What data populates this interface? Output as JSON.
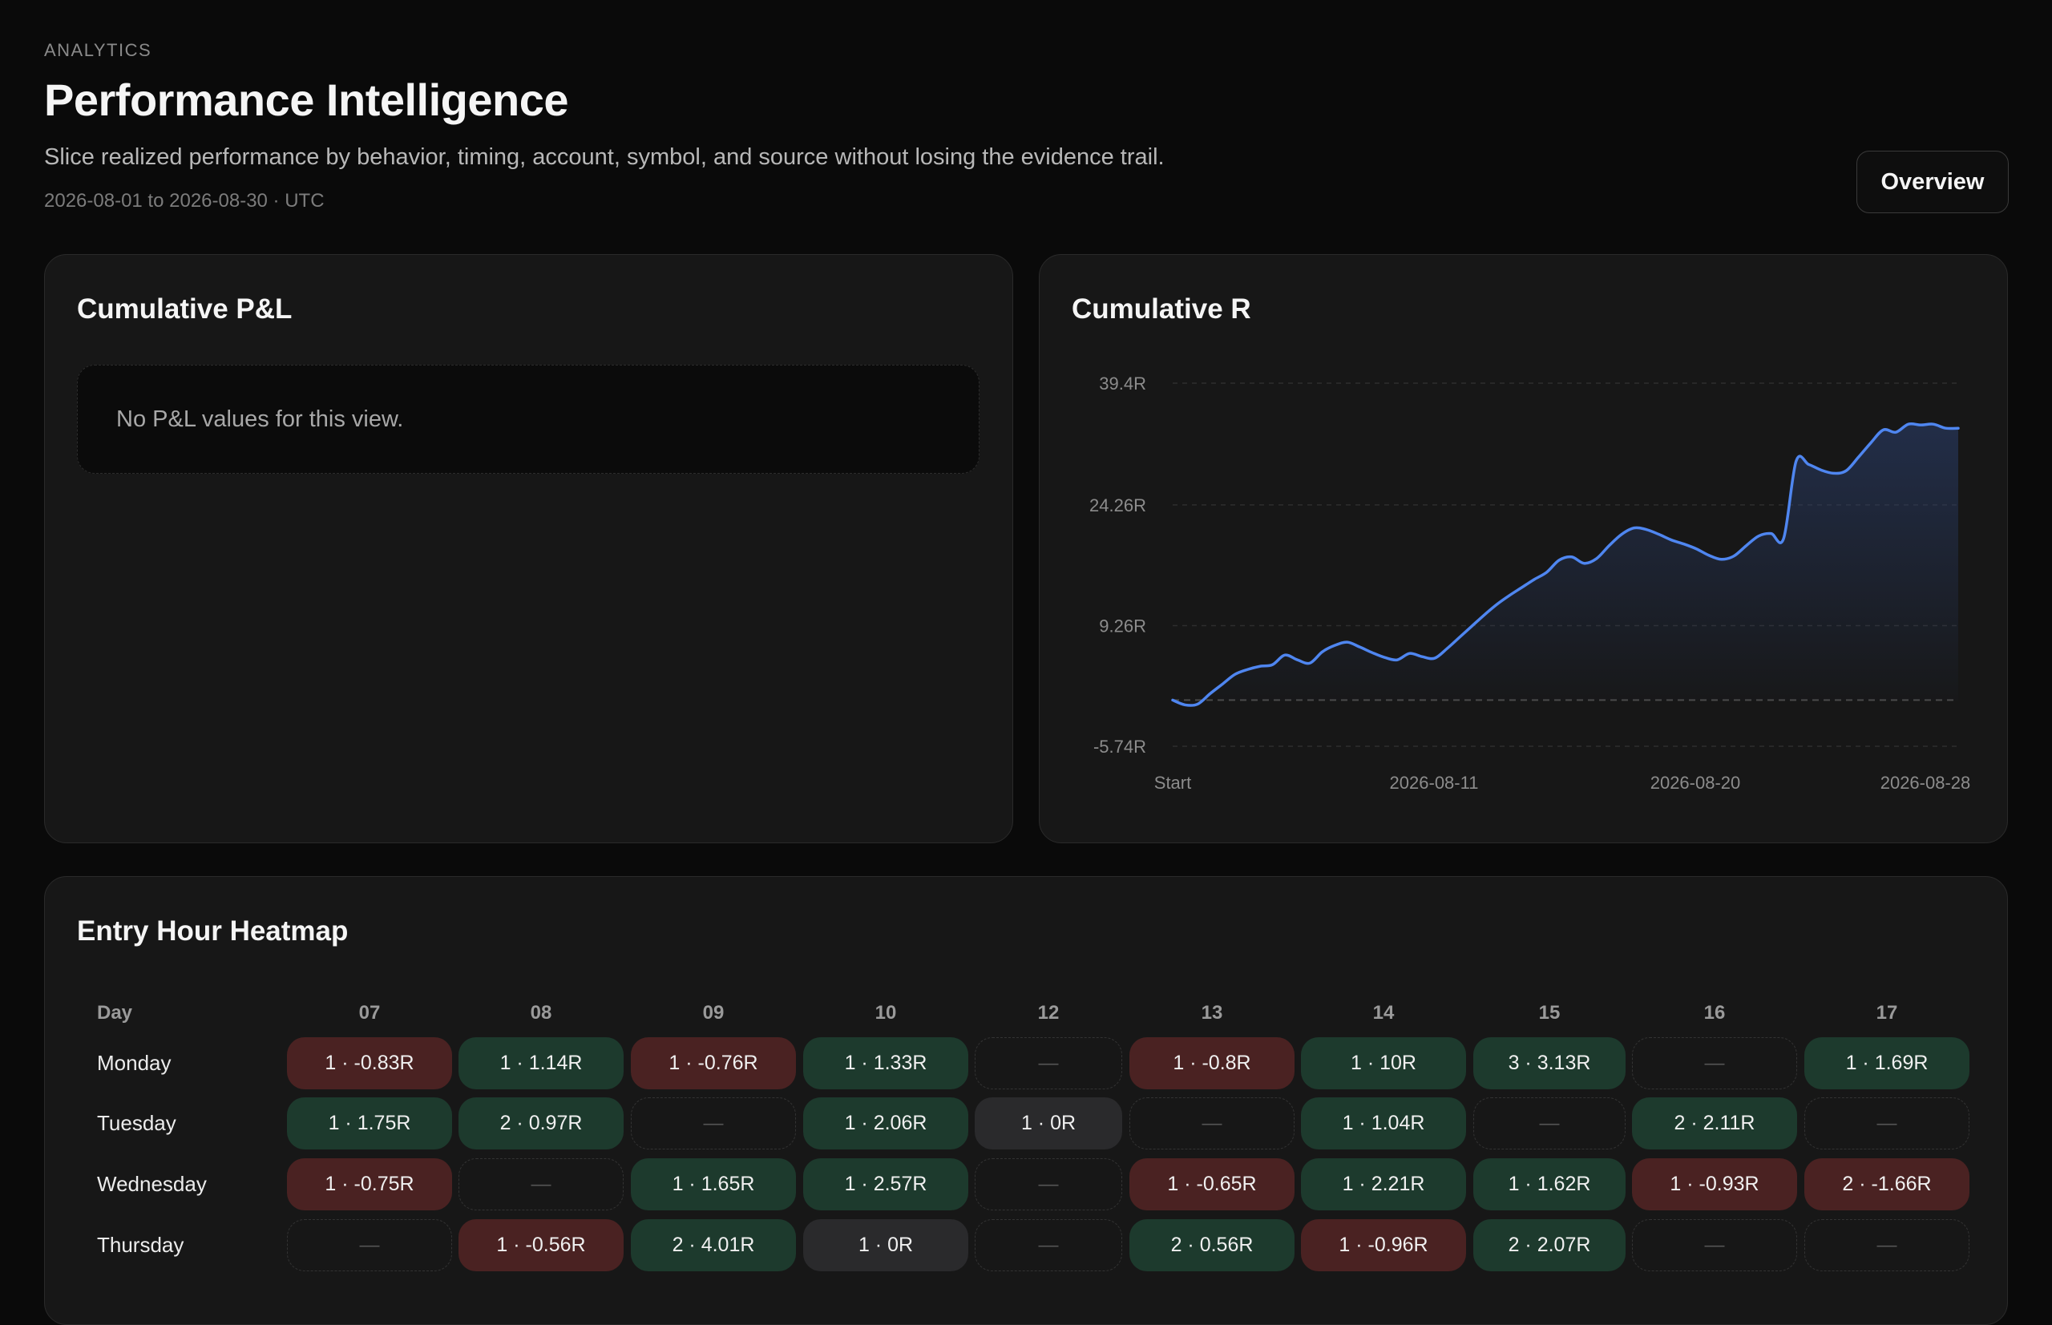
{
  "header": {
    "eyebrow": "ANALYTICS",
    "title": "Performance Intelligence",
    "subtitle": "Slice realized performance by behavior, timing, account, symbol, and source without losing the evidence trail.",
    "date_range": "2026-08-01 to 2026-08-30 · UTC",
    "overview_label": "Overview"
  },
  "pnl_card": {
    "title": "Cumulative P&L",
    "empty_message": "No P&L values for this view."
  },
  "r_card": {
    "title": "Cumulative R",
    "line_color": "#4f86f0"
  },
  "chart_data": {
    "type": "line",
    "title": "Cumulative R",
    "y_ticks": [
      "39.4R",
      "24.26R",
      "9.26R",
      "-5.74R"
    ],
    "x_ticks": [
      "Start",
      "2026-08-11",
      "2026-08-20",
      "2026-08-28"
    ],
    "ylim": [
      -5.74,
      39.4
    ],
    "baseline": 0,
    "grid": true,
    "series": [
      {
        "values": [
          0,
          -0.6,
          -0.5,
          0.8,
          2.0,
          3.2,
          3.8,
          4.2,
          4.4,
          5.6,
          5.0,
          4.6,
          6.0,
          6.8,
          7.2,
          6.6,
          5.9,
          5.3,
          5.0,
          5.8,
          5.4,
          5.2,
          6.4,
          7.8,
          9.2,
          10.6,
          11.9,
          13.0,
          14.0,
          15.0,
          15.9,
          17.4,
          17.8,
          17.0,
          17.6,
          19.2,
          20.6,
          21.4,
          21.2,
          20.6,
          19.9,
          19.4,
          18.8,
          18.0,
          17.5,
          17.9,
          19.2,
          20.4,
          20.7,
          20.1,
          29.7,
          29.3,
          28.6,
          28.2,
          28.5,
          30.2,
          32.0,
          33.6,
          33.3,
          34.3,
          34.2,
          34.3,
          33.8,
          33.8
        ]
      }
    ]
  },
  "heatmap": {
    "title": "Entry Hour Heatmap",
    "day_header": "Day",
    "hours": [
      "07",
      "08",
      "09",
      "10",
      "12",
      "13",
      "14",
      "15",
      "16",
      "17"
    ],
    "rows": [
      {
        "day": "Monday",
        "cells": [
          {
            "text": "1 · -0.83R",
            "tone": "neg"
          },
          {
            "text": "1 · 1.14R",
            "tone": "pos"
          },
          {
            "text": "1 · -0.76R",
            "tone": "neg"
          },
          {
            "text": "1 · 1.33R",
            "tone": "pos"
          },
          {
            "text": "—",
            "tone": "empty"
          },
          {
            "text": "1 · -0.8R",
            "tone": "neg"
          },
          {
            "text": "1 · 10R",
            "tone": "pos"
          },
          {
            "text": "3 · 3.13R",
            "tone": "pos"
          },
          {
            "text": "—",
            "tone": "empty"
          },
          {
            "text": "1 · 1.69R",
            "tone": "pos"
          }
        ]
      },
      {
        "day": "Tuesday",
        "cells": [
          {
            "text": "1 · 1.75R",
            "tone": "pos"
          },
          {
            "text": "2 · 0.97R",
            "tone": "pos"
          },
          {
            "text": "—",
            "tone": "empty"
          },
          {
            "text": "1 · 2.06R",
            "tone": "pos"
          },
          {
            "text": "1 · 0R",
            "tone": "zero"
          },
          {
            "text": "—",
            "tone": "empty"
          },
          {
            "text": "1 · 1.04R",
            "tone": "pos"
          },
          {
            "text": "—",
            "tone": "empty"
          },
          {
            "text": "2 · 2.11R",
            "tone": "pos"
          },
          {
            "text": "—",
            "tone": "empty"
          }
        ]
      },
      {
        "day": "Wednesday",
        "cells": [
          {
            "text": "1 · -0.75R",
            "tone": "neg"
          },
          {
            "text": "—",
            "tone": "empty"
          },
          {
            "text": "1 · 1.65R",
            "tone": "pos"
          },
          {
            "text": "1 · 2.57R",
            "tone": "pos"
          },
          {
            "text": "—",
            "tone": "empty"
          },
          {
            "text": "1 · -0.65R",
            "tone": "neg"
          },
          {
            "text": "1 · 2.21R",
            "tone": "pos"
          },
          {
            "text": "1 · 1.62R",
            "tone": "pos"
          },
          {
            "text": "1 · -0.93R",
            "tone": "neg"
          },
          {
            "text": "2 · -1.66R",
            "tone": "neg"
          }
        ]
      },
      {
        "day": "Thursday",
        "cells": [
          {
            "text": "—",
            "tone": "empty"
          },
          {
            "text": "1 · -0.56R",
            "tone": "neg"
          },
          {
            "text": "2 · 4.01R",
            "tone": "pos"
          },
          {
            "text": "1 · 0R",
            "tone": "zero"
          },
          {
            "text": "—",
            "tone": "empty"
          },
          {
            "text": "2 · 0.56R",
            "tone": "pos"
          },
          {
            "text": "1 · -0.96R",
            "tone": "neg"
          },
          {
            "text": "2 · 2.07R",
            "tone": "pos"
          },
          {
            "text": "—",
            "tone": "empty"
          },
          {
            "text": "—",
            "tone": "empty"
          }
        ]
      }
    ]
  }
}
